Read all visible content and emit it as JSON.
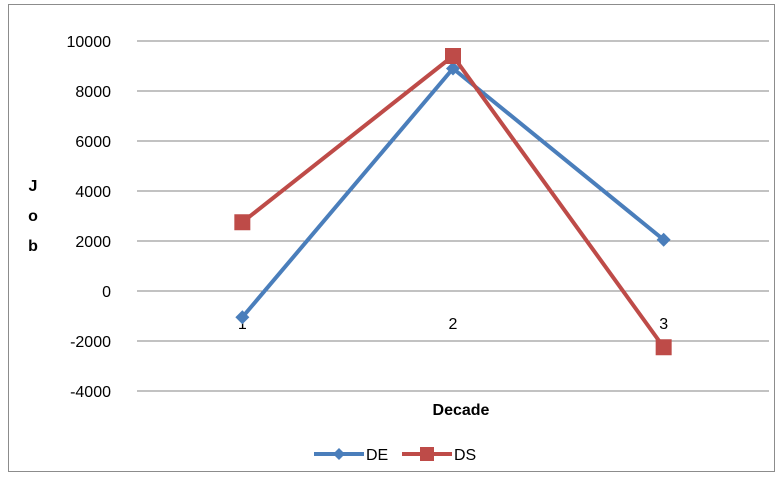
{
  "chart_data": {
    "type": "line",
    "title": "",
    "xlabel": "Decade",
    "ylabel": "Job",
    "ylabel_letters": [
      "J",
      "o",
      "b"
    ],
    "categories": [
      "1",
      "2",
      "3"
    ],
    "ylim": [
      -4000,
      10000
    ],
    "yticks": [
      10000,
      8000,
      6000,
      4000,
      2000,
      0,
      -2000,
      -4000
    ],
    "ytick_labels": [
      "10000",
      "8000",
      "6000",
      "4000",
      "2000",
      "0",
      "-2000",
      "-4000"
    ],
    "grid": true,
    "legend_position": "bottom",
    "series": [
      {
        "name": "DE",
        "values": [
          -1050,
          8900,
          2050
        ],
        "color": "#4a7ebb",
        "marker": "diamond"
      },
      {
        "name": "DS",
        "values": [
          2750,
          9400,
          -2250
        ],
        "color": "#be4b48",
        "marker": "square"
      }
    ]
  }
}
